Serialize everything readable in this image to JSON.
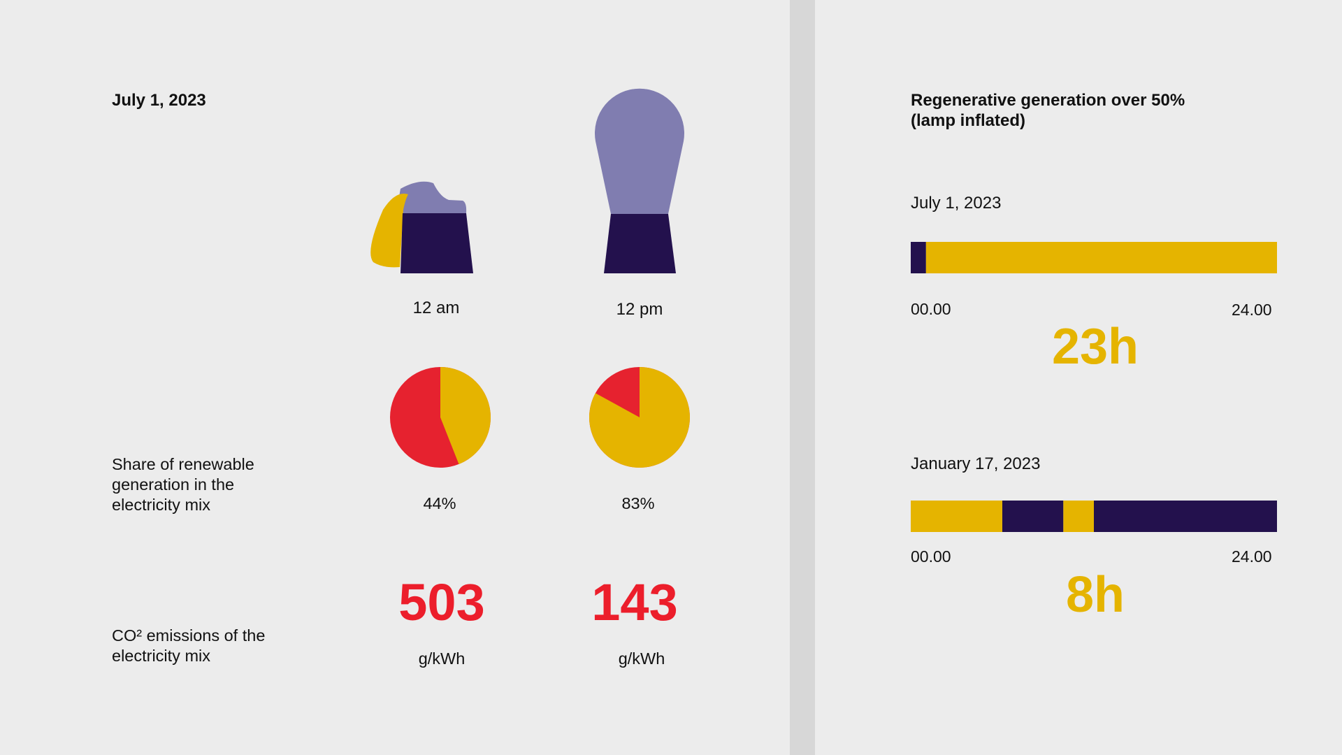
{
  "left": {
    "date": "July 1, 2023",
    "renewable_label": "Share of renewable\ngeneration in the\nelectricity mix",
    "co2_label": "CO² emissions of the\nelectricity mix"
  },
  "right": {
    "title": "Regenerative generation over 50%\n(lamp inflated)"
  },
  "colors": {
    "background": "#ececec",
    "divider": "#d7d7d7",
    "renewable": "#e5b400",
    "fossil": "#e6222f",
    "lamp_bulb": "#807db0",
    "lamp_base": "#23114d",
    "emissions_text": "#ec1e2b",
    "hours_text": "#e5b400"
  },
  "chart_data": [
    {
      "type": "pie",
      "title": "",
      "slices": [
        {
          "time": "12 am",
          "renewable_pct": 44,
          "label": "44%"
        },
        {
          "time": "12 pm",
          "renewable_pct": 83,
          "label": "83%"
        }
      ]
    },
    {
      "type": "table",
      "title": "",
      "unit": "g/kWh",
      "rows": [
        {
          "time": "12 am",
          "value": 503
        },
        {
          "time": "12 pm",
          "value": 143
        }
      ]
    },
    {
      "type": "bar",
      "title": "",
      "x_range": [
        0,
        24
      ],
      "x_start_label": "00.00",
      "x_end_label": "24.00",
      "timelines": [
        {
          "date": "July 1, 2023",
          "total_label": "23h",
          "segments": [
            {
              "start": 0,
              "end": 1,
              "state": "below"
            },
            {
              "start": 1,
              "end": 24,
              "state": "over"
            }
          ]
        },
        {
          "date": "January 17, 2023",
          "total_label": "8h",
          "segments": [
            {
              "start": 0,
              "end": 6,
              "state": "over"
            },
            {
              "start": 6,
              "end": 10,
              "state": "below"
            },
            {
              "start": 10,
              "end": 12,
              "state": "over"
            },
            {
              "start": 12,
              "end": 24,
              "state": "below"
            }
          ]
        }
      ]
    }
  ]
}
